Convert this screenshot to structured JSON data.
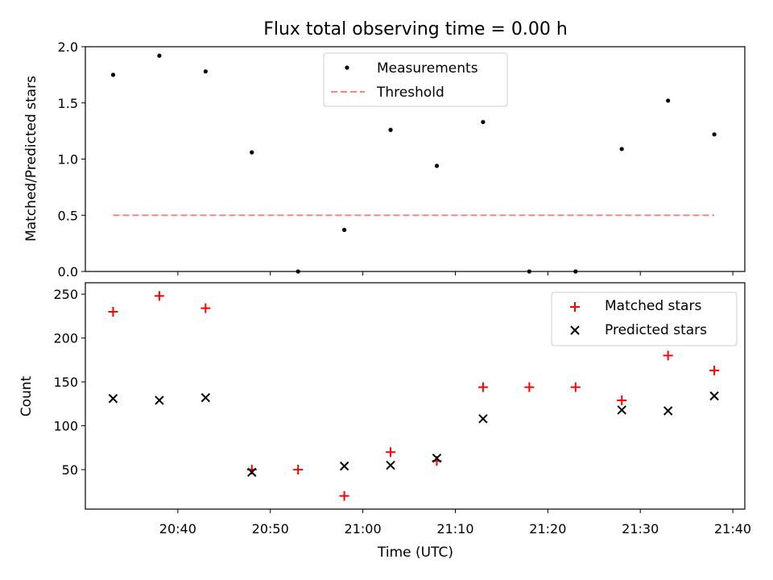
{
  "chart_data": [
    {
      "type": "scatter",
      "title": "Flux total observing time = 0.00 h",
      "xlabel": "",
      "ylabel": "Matched/Predicted stars",
      "x": [
        "20:33",
        "20:38",
        "20:43",
        "20:48",
        "20:53",
        "20:58",
        "21:03",
        "21:08",
        "21:13",
        "21:18",
        "21:23",
        "21:28",
        "21:33",
        "21:38"
      ],
      "series": [
        {
          "name": "Measurements",
          "marker": "dot",
          "color": "#000000",
          "values": [
            1.75,
            1.92,
            1.78,
            1.06,
            0.0,
            0.37,
            1.26,
            0.94,
            1.33,
            0.0,
            0.0,
            1.09,
            1.52,
            1.22
          ]
        },
        {
          "name": "Threshold",
          "marker": "dashed-line",
          "color": "#ff7f7f",
          "values": [
            0.5,
            0.5
          ]
        }
      ],
      "threshold_x": [
        "20:33",
        "21:38"
      ],
      "ylim": [
        0,
        2.0
      ],
      "yticks": [
        "0.0",
        "0.5",
        "1.0",
        "1.5",
        "2.0"
      ],
      "legend": "upper-center",
      "grid": false
    },
    {
      "type": "scatter",
      "title": "",
      "xlabel": "Time (UTC)",
      "ylabel": "Count",
      "x": [
        "20:33",
        "20:38",
        "20:43",
        "20:48",
        "20:53",
        "20:58",
        "21:03",
        "21:08",
        "21:13",
        "21:18",
        "21:23",
        "21:28",
        "21:33",
        "21:38"
      ],
      "series": [
        {
          "name": "Matched stars",
          "marker": "plus",
          "color": "#ff0000",
          "values": [
            230,
            248,
            234,
            50,
            50,
            20,
            70,
            60,
            144,
            144,
            144,
            129,
            180,
            163
          ]
        },
        {
          "name": "Predicted stars",
          "marker": "x",
          "color": "#000000",
          "values": [
            131,
            129,
            132,
            47,
            null,
            54,
            55,
            63,
            108,
            null,
            null,
            118,
            117,
            134
          ]
        }
      ],
      "ylim": [
        5,
        263
      ],
      "yticks": [
        "50",
        "100",
        "150",
        "200",
        "250"
      ],
      "xticks": [
        "20:40",
        "20:50",
        "21:00",
        "21:10",
        "21:20",
        "21:30",
        "21:40"
      ],
      "xlim": [
        "20:30",
        "21:41.3"
      ],
      "legend": "upper-right",
      "grid": false
    }
  ]
}
